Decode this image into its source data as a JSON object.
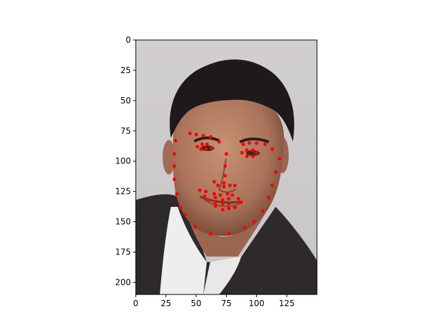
{
  "chart_data": {
    "type": "scatter",
    "title": "",
    "xlabel": "",
    "ylabel": "",
    "xlim": [
      0,
      150
    ],
    "ylim": [
      210,
      0
    ],
    "y_inverted": true,
    "grid": false,
    "background_image": "portrait-photo",
    "x_ticks": [
      0,
      25,
      50,
      75,
      100,
      125
    ],
    "y_ticks": [
      0,
      25,
      50,
      75,
      100,
      125,
      150,
      175,
      200
    ],
    "series": [
      {
        "color": "#ff0000",
        "marker": "circle",
        "points": [
          [
            33,
            83
          ],
          [
            32,
            94
          ],
          [
            32,
            104
          ],
          [
            32,
            115
          ],
          [
            34,
            127
          ],
          [
            37,
            138
          ],
          [
            41,
            144
          ],
          [
            49,
            154
          ],
          [
            62,
            160
          ],
          [
            77,
            160
          ],
          [
            90,
            155
          ],
          [
            98,
            150
          ],
          [
            105,
            141
          ],
          [
            110,
            130
          ],
          [
            113,
            120
          ],
          [
            116,
            109
          ],
          [
            119,
            98
          ],
          [
            45,
            77
          ],
          [
            50,
            78
          ],
          [
            56,
            79
          ],
          [
            62,
            80
          ],
          [
            69,
            84
          ],
          [
            89,
            86
          ],
          [
            94,
            85
          ],
          [
            100,
            85
          ],
          [
            107,
            86
          ],
          [
            113,
            90
          ],
          [
            75,
            94
          ],
          [
            74,
            104
          ],
          [
            74,
            112
          ],
          [
            73,
            118
          ],
          [
            65,
            117
          ],
          [
            68,
            120
          ],
          [
            73,
            121
          ],
          [
            78,
            120
          ],
          [
            82,
            120
          ],
          [
            51,
            88
          ],
          [
            55,
            86
          ],
          [
            59,
            86
          ],
          [
            63,
            89
          ],
          [
            58,
            90
          ],
          [
            54,
            90
          ],
          [
            88,
            93
          ],
          [
            92,
            91
          ],
          [
            97,
            91
          ],
          [
            100,
            93
          ],
          [
            97,
            96
          ],
          [
            92,
            96
          ],
          [
            53,
            124
          ],
          [
            58,
            125
          ],
          [
            65,
            127
          ],
          [
            70,
            128
          ],
          [
            76,
            127
          ],
          [
            80,
            128
          ],
          [
            85,
            131
          ],
          [
            87,
            134
          ],
          [
            82,
            138
          ],
          [
            77,
            139
          ],
          [
            72,
            140
          ],
          [
            66,
            137
          ],
          [
            60,
            132
          ],
          [
            57,
            129
          ],
          [
            66,
            130
          ],
          [
            72,
            132
          ],
          [
            77,
            131
          ],
          [
            86,
            134
          ],
          [
            77,
            135
          ],
          [
            72,
            135
          ],
          [
            66,
            134
          ]
        ]
      }
    ]
  }
}
